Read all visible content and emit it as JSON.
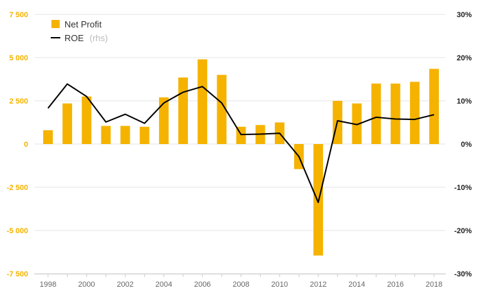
{
  "chart_data": {
    "type": "bar",
    "x": [
      1998,
      1999,
      2000,
      2001,
      2002,
      2003,
      2004,
      2005,
      2006,
      2007,
      2008,
      2009,
      2010,
      2011,
      2012,
      2013,
      2014,
      2015,
      2016,
      2017,
      2018
    ],
    "x_tick_labels": [
      "1998",
      "2000",
      "2002",
      "2004",
      "2006",
      "2008",
      "2010",
      "2012",
      "2014",
      "2016",
      "2018"
    ],
    "series": [
      {
        "name": "Net Profit",
        "type": "bar",
        "axis": "left",
        "color": "#f5b300",
        "values": [
          800,
          2350,
          2750,
          1050,
          1050,
          1000,
          2700,
          3850,
          4900,
          4000,
          1000,
          1100,
          1250,
          -1450,
          -6450,
          2500,
          2350,
          3500,
          3500,
          3600,
          4350
        ]
      },
      {
        "name": "ROE",
        "name_suffix": "(rhs)",
        "type": "line",
        "axis": "right",
        "color": "#000000",
        "values": [
          8.3,
          13.9,
          11.0,
          5.1,
          6.9,
          4.8,
          9.5,
          12.0,
          13.3,
          9.5,
          2.2,
          2.3,
          2.5,
          -2.9,
          -13.5,
          5.4,
          4.5,
          6.2,
          5.8,
          5.7,
          6.8
        ]
      }
    ],
    "ylim": [
      -7500,
      7500
    ],
    "y_ticks": [
      -7500,
      -5000,
      -2500,
      0,
      2500,
      5000,
      7500
    ],
    "y_tick_labels": [
      "-7 500",
      "-5 000",
      "-2 500",
      "0",
      "2 500",
      "5 000",
      "7 500"
    ],
    "y2lim": [
      -30,
      30
    ],
    "y2_ticks": [
      -30,
      -20,
      -10,
      0,
      10,
      20,
      30
    ],
    "y2_tick_labels": [
      "-30%",
      "-20%",
      "-10%",
      "0%",
      "10%",
      "20%",
      "30%"
    ],
    "grid": true,
    "legend_position": "top-left",
    "title": "",
    "xlabel": "",
    "ylabel": ""
  }
}
